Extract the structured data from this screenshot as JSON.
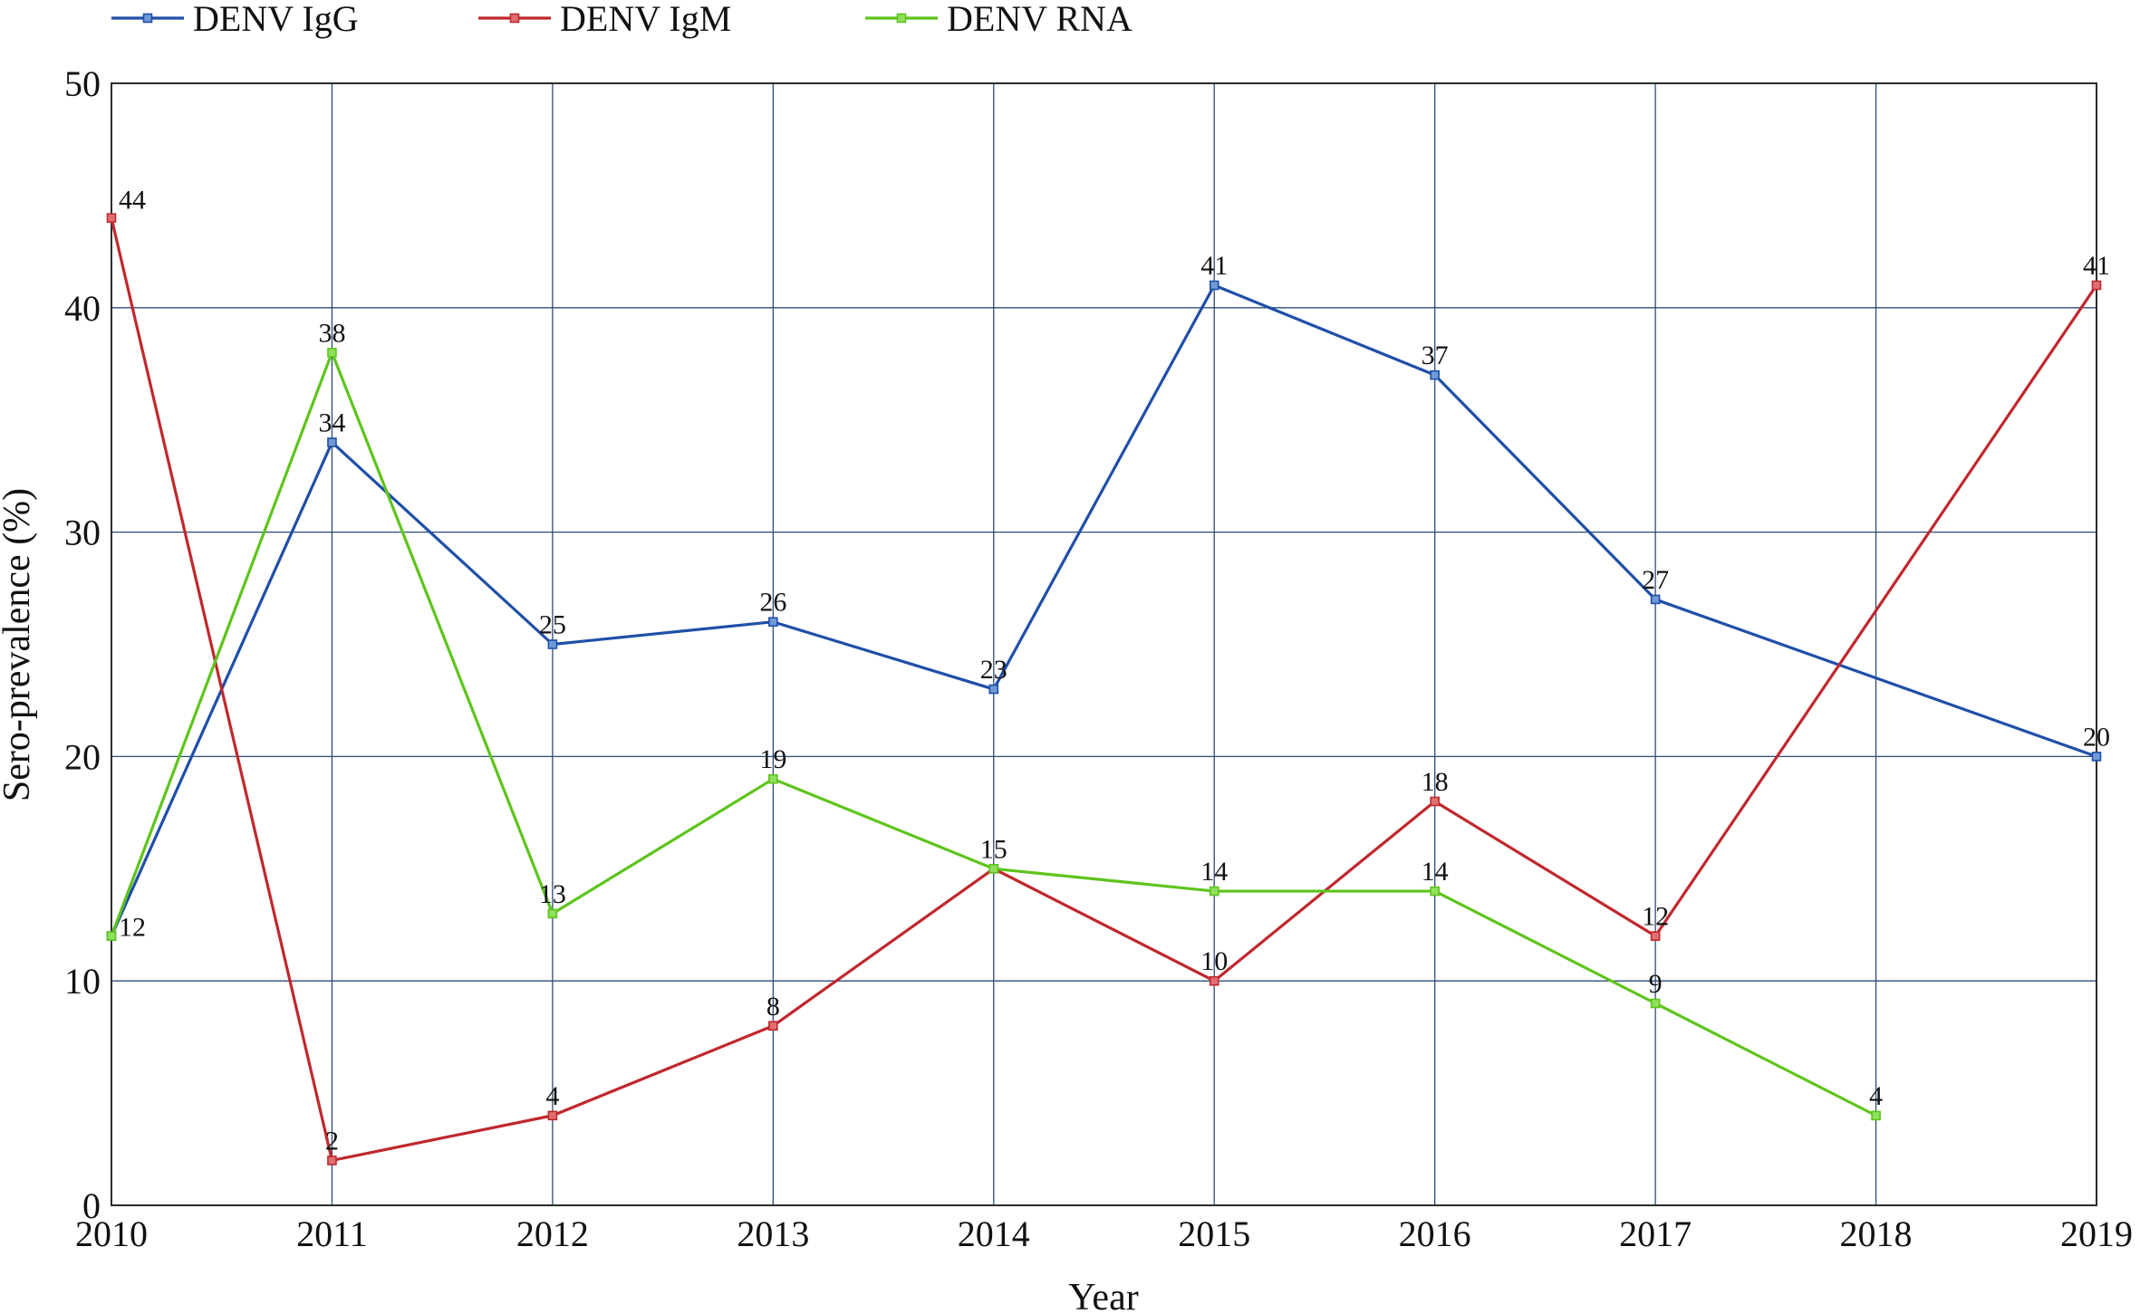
{
  "chart_data": {
    "type": "line",
    "title": "",
    "xlabel": "Year",
    "ylabel": "Sero-prevalence (%)",
    "x": [
      2010,
      2011,
      2012,
      2013,
      2014,
      2015,
      2016,
      2017,
      2018,
      2019
    ],
    "x_tick_labels": [
      "2010",
      "2011",
      "2012",
      "2013",
      "2014",
      "2015",
      "2016",
      "2017",
      "2018",
      "2019"
    ],
    "ylim": [
      0,
      50
    ],
    "y_ticks": [
      0,
      10,
      20,
      30,
      40,
      50
    ],
    "y_tick_labels": [
      "0",
      "10",
      "20",
      "30",
      "40",
      "50"
    ],
    "grid": true,
    "legend_position": "top-left, above plot",
    "series": [
      {
        "name": "DENV IgG",
        "color": "#1f4fa8",
        "values": [
          12,
          34,
          25,
          26,
          23,
          41,
          37,
          27,
          null,
          20
        ]
      },
      {
        "name": "DENV IgM",
        "color": "#c0282d",
        "values": [
          44,
          2,
          4,
          8,
          15,
          10,
          18,
          12,
          null,
          41
        ]
      },
      {
        "name": "DENV RNA",
        "color": "#5ec41c",
        "values": [
          12,
          38,
          13,
          19,
          15,
          14,
          14,
          9,
          4,
          null
        ]
      }
    ],
    "data_labels": [
      {
        "series": "DENV IgG",
        "x": 2010,
        "text": "12"
      },
      {
        "series": "DENV IgG",
        "x": 2011,
        "text": "34"
      },
      {
        "series": "DENV IgG",
        "x": 2012,
        "text": "25"
      },
      {
        "series": "DENV IgG",
        "x": 2013,
        "text": "26"
      },
      {
        "series": "DENV IgG",
        "x": 2014,
        "text": "23"
      },
      {
        "series": "DENV IgG",
        "x": 2015,
        "text": "41"
      },
      {
        "series": "DENV IgG",
        "x": 2016,
        "text": "37"
      },
      {
        "series": "DENV IgG",
        "x": 2017,
        "text": "27"
      },
      {
        "series": "DENV IgG",
        "x": 2019,
        "text": "20"
      },
      {
        "series": "DENV IgM",
        "x": 2010,
        "text": "44"
      },
      {
        "series": "DENV IgM",
        "x": 2011,
        "text": "2"
      },
      {
        "series": "DENV IgM",
        "x": 2012,
        "text": "4"
      },
      {
        "series": "DENV IgM",
        "x": 2013,
        "text": "8"
      },
      {
        "series": "DENV IgM",
        "x": 2014,
        "text": "15"
      },
      {
        "series": "DENV IgM",
        "x": 2015,
        "text": "10"
      },
      {
        "series": "DENV IgM",
        "x": 2016,
        "text": "18"
      },
      {
        "series": "DENV IgM",
        "x": 2017,
        "text": "12"
      },
      {
        "series": "DENV IgM",
        "x": 2019,
        "text": "41"
      },
      {
        "series": "DENV RNA",
        "x": 2011,
        "text": "38"
      },
      {
        "series": "DENV RNA",
        "x": 2012,
        "text": "13"
      },
      {
        "series": "DENV RNA",
        "x": 2013,
        "text": "19"
      },
      {
        "series": "DENV RNA",
        "x": 2015,
        "text": "14"
      },
      {
        "series": "DENV RNA",
        "x": 2016,
        "text": "14"
      },
      {
        "series": "DENV RNA",
        "x": 2017,
        "text": "9"
      },
      {
        "series": "DENV RNA",
        "x": 2018,
        "text": "4"
      }
    ]
  }
}
